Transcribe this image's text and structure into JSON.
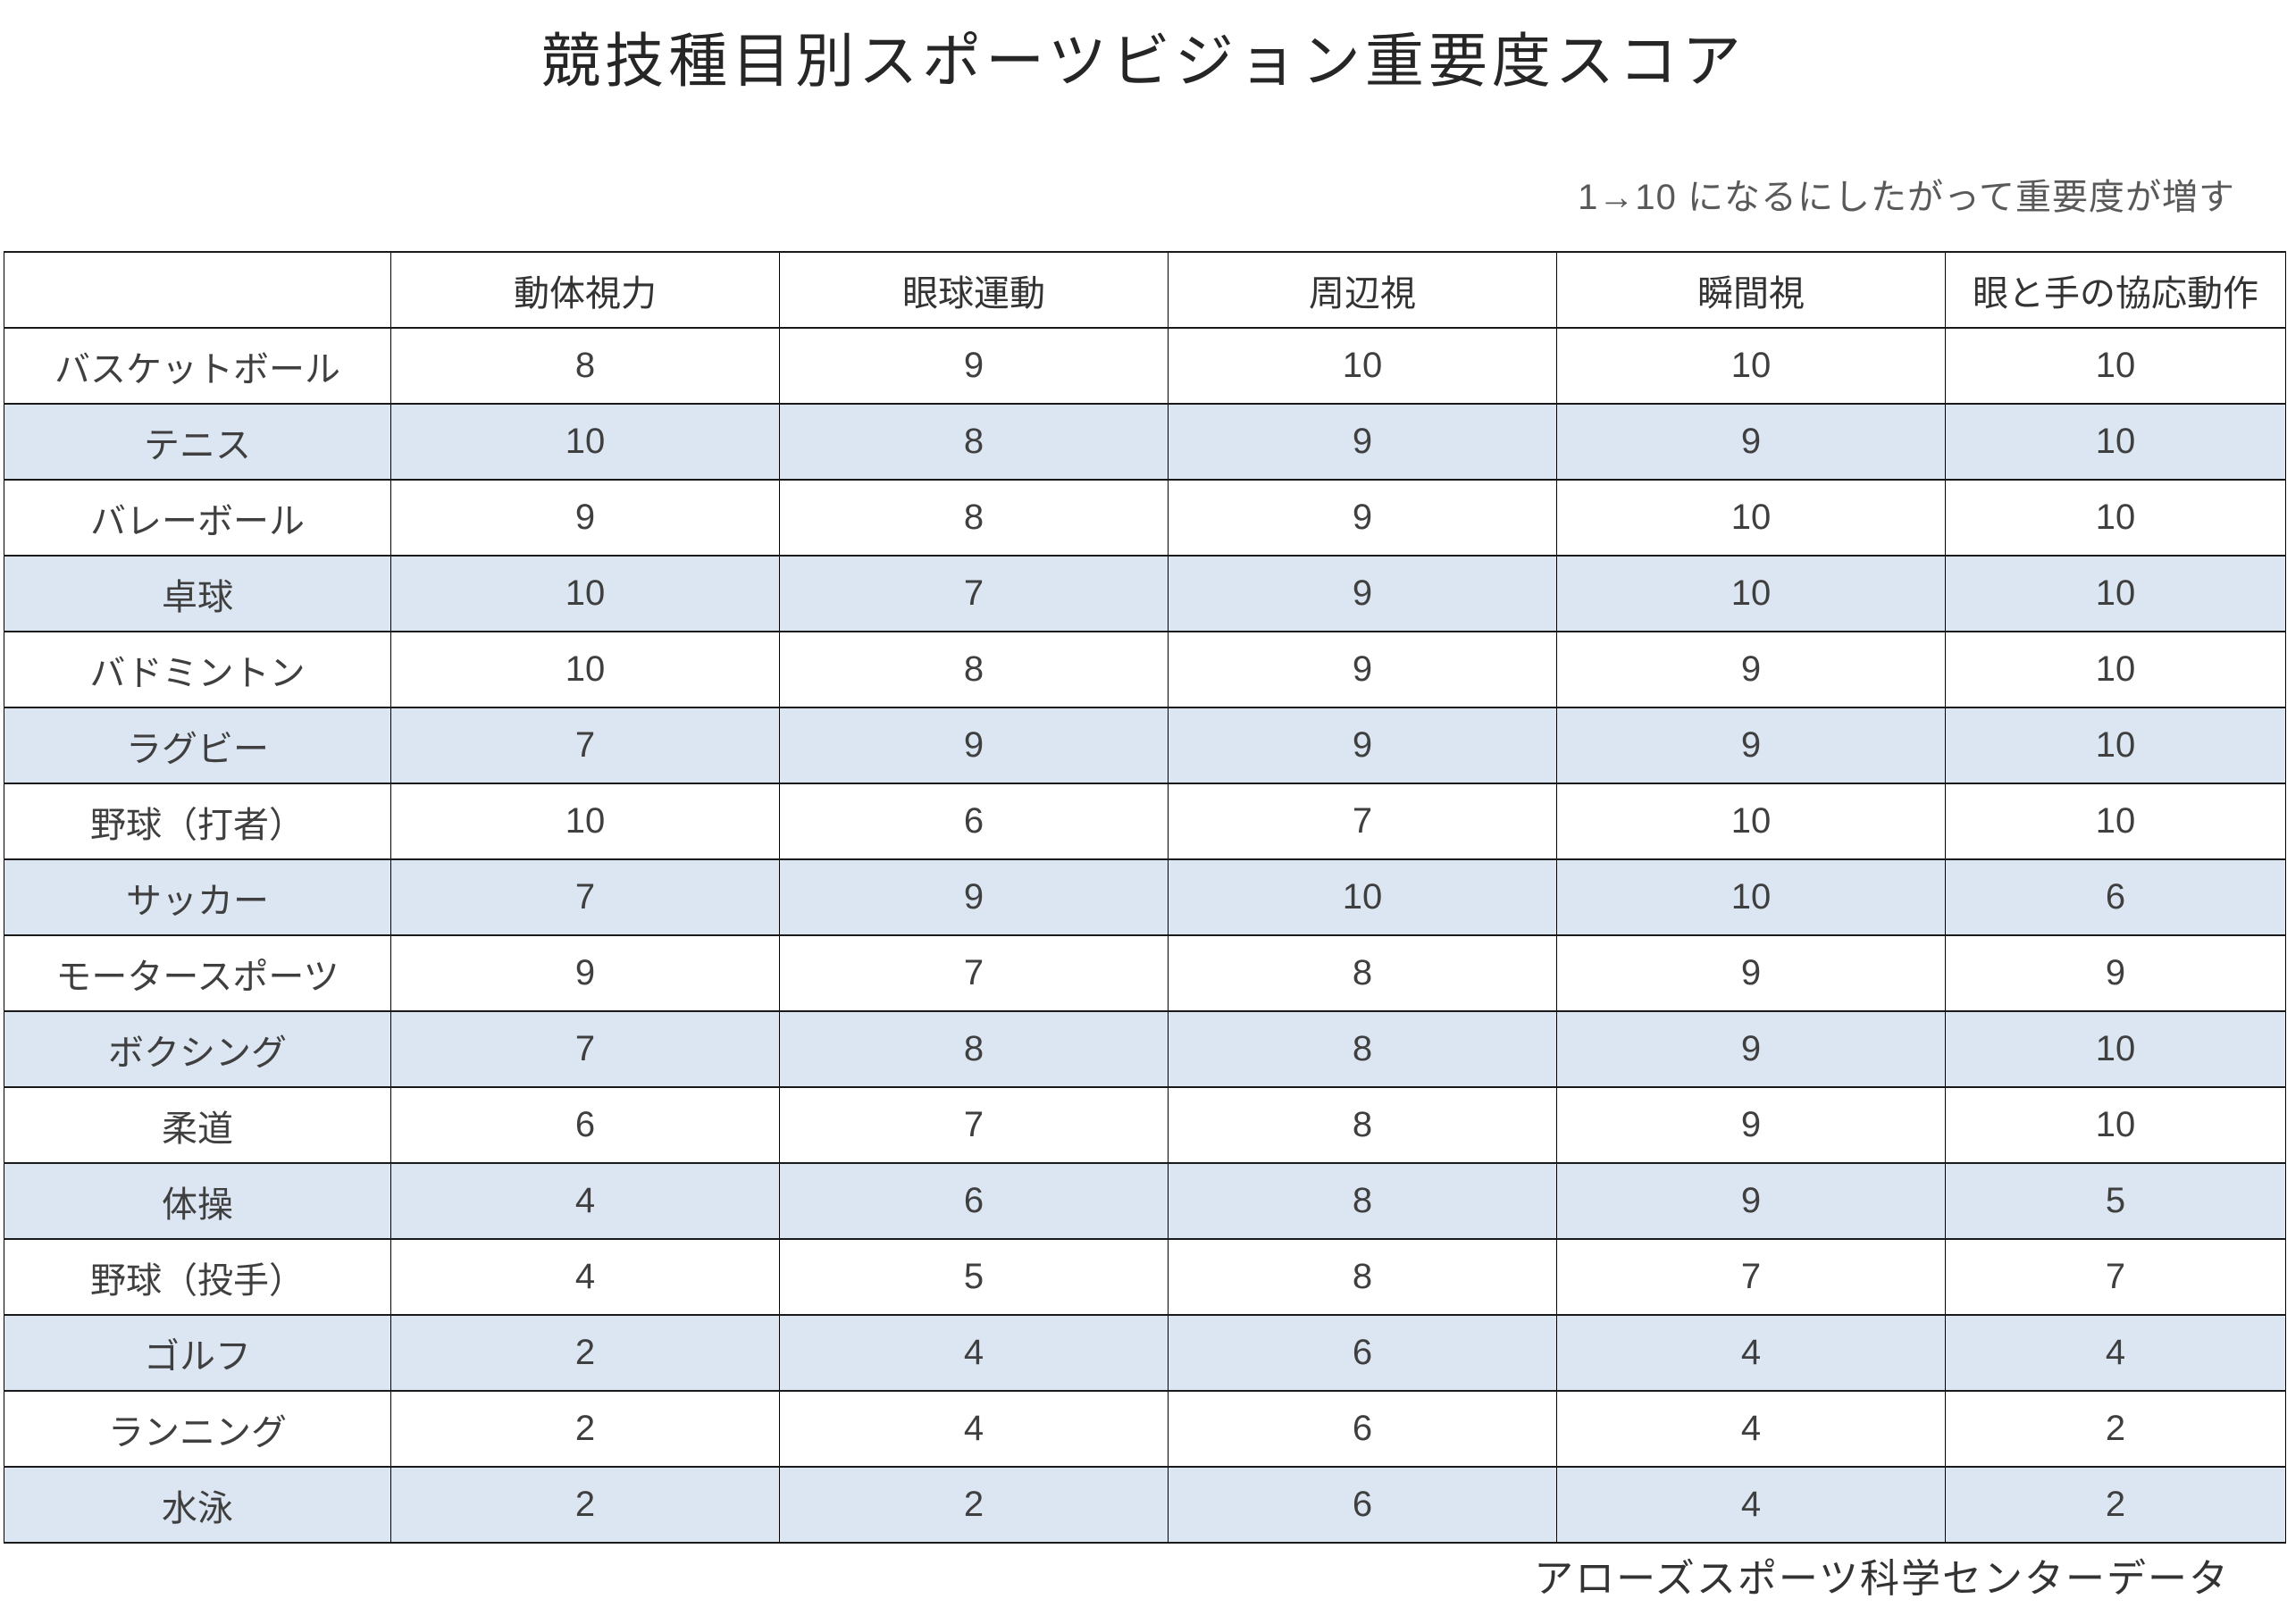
{
  "title": "競技種目別スポーツビジョン重要度スコア",
  "subtitle": "1→10 になるにしたがって重要度が増す",
  "footer": "アローズスポーツ科学センターデータ",
  "colors": {
    "row_stripe": "#dce6f2",
    "border": "#000000",
    "subtitle_text": "#595959",
    "cell_text": "#3f3f3f"
  },
  "chart_data": {
    "type": "table",
    "title": "競技種目別スポーツビジョン重要度スコア",
    "scale_note": "1→10 になるにしたがって重要度が増す",
    "source": "アローズスポーツ科学センターデータ",
    "value_range": [
      1,
      10
    ],
    "columns": [
      "",
      "動体視力",
      "眼球運動",
      "周辺視",
      "瞬間視",
      "眼と手の協応動作"
    ],
    "rows": [
      {
        "label": "バスケットボール",
        "values": [
          8,
          9,
          10,
          10,
          10
        ]
      },
      {
        "label": "テニス",
        "values": [
          10,
          8,
          9,
          9,
          10
        ]
      },
      {
        "label": "バレーボール",
        "values": [
          9,
          8,
          9,
          10,
          10
        ]
      },
      {
        "label": "卓球",
        "values": [
          10,
          7,
          9,
          10,
          10
        ]
      },
      {
        "label": "バドミントン",
        "values": [
          10,
          8,
          9,
          9,
          10
        ]
      },
      {
        "label": "ラグビー",
        "values": [
          7,
          9,
          9,
          9,
          10
        ]
      },
      {
        "label": "野球（打者）",
        "values": [
          10,
          6,
          7,
          10,
          10
        ]
      },
      {
        "label": "サッカー",
        "values": [
          7,
          9,
          10,
          10,
          6
        ]
      },
      {
        "label": "モータースポーツ",
        "values": [
          9,
          7,
          8,
          9,
          9
        ]
      },
      {
        "label": "ボクシング",
        "values": [
          7,
          8,
          8,
          9,
          10
        ]
      },
      {
        "label": "柔道",
        "values": [
          6,
          7,
          8,
          9,
          10
        ]
      },
      {
        "label": "体操",
        "values": [
          4,
          6,
          8,
          9,
          5
        ]
      },
      {
        "label": "野球（投手）",
        "values": [
          4,
          5,
          8,
          7,
          7
        ]
      },
      {
        "label": "ゴルフ",
        "values": [
          2,
          4,
          6,
          4,
          4
        ]
      },
      {
        "label": "ランニング",
        "values": [
          2,
          4,
          6,
          4,
          2
        ]
      },
      {
        "label": "水泳",
        "values": [
          2,
          2,
          6,
          4,
          2
        ]
      }
    ]
  }
}
